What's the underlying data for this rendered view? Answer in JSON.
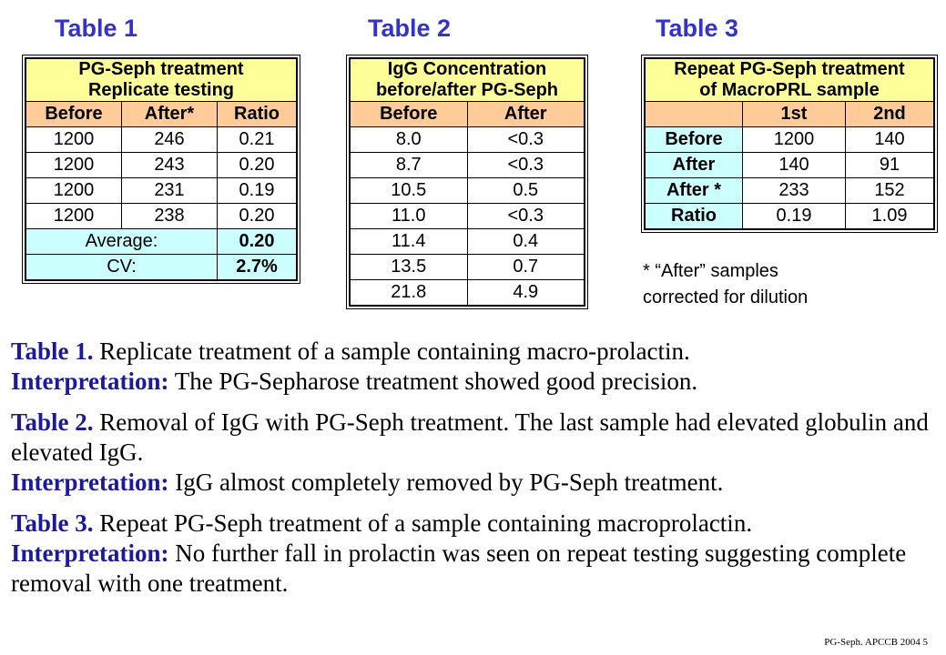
{
  "headings": {
    "t1": "Table 1",
    "t2": "Table 2",
    "t3": "Table 3"
  },
  "table1": {
    "title_line1": "PG-Seph treatment",
    "title_line2": "Replicate testing",
    "headers": [
      "Before",
      "After*",
      "Ratio"
    ],
    "rows": [
      [
        "1200",
        "246",
        "0.21"
      ],
      [
        "1200",
        "243",
        "0.20"
      ],
      [
        "1200",
        "231",
        "0.19"
      ],
      [
        "1200",
        "238",
        "0.20"
      ]
    ],
    "average_label": "Average:",
    "average_value": "0.20",
    "cv_label": "CV:",
    "cv_value": "2.7%"
  },
  "table2": {
    "title_line1": "IgG Concentration",
    "title_line2": "before/after PG-Seph",
    "headers": [
      "Before",
      "After"
    ],
    "rows": [
      [
        "8.0",
        "<0.3"
      ],
      [
        "8.7",
        "<0.3"
      ],
      [
        "10.5",
        "0.5"
      ],
      [
        "11.0",
        "<0.3"
      ],
      [
        "11.4",
        "0.4"
      ],
      [
        "13.5",
        "0.7"
      ],
      [
        "21.8",
        "4.9"
      ]
    ]
  },
  "table3": {
    "title_line1": "Repeat PG-Seph treatment",
    "title_line2": "of MacroPRL sample",
    "headers": [
      "",
      "1st",
      "2nd"
    ],
    "rows": [
      [
        "Before",
        "1200",
        "140"
      ],
      [
        "After",
        "140",
        "91"
      ],
      [
        "After *",
        "233",
        "152"
      ],
      [
        "Ratio",
        "0.19",
        "1.09"
      ]
    ],
    "footnote_line1": "* “After” samples",
    "footnote_line2": "corrected for dilution"
  },
  "captions": [
    {
      "label1": "Table 1.",
      "text1": " Replicate treatment of a sample containing macro-prolactin.",
      "label2": "Interpretation:",
      "text2": " The PG-Sepharose treatment showed good precision."
    },
    {
      "label1": "Table 2.",
      "text1": " Removal of IgG with PG-Seph treatment. The last sample had elevated globulin and elevated IgG.",
      "label2": "Interpretation:",
      "text2": " IgG almost completely removed by PG-Seph treatment."
    },
    {
      "label1": "Table 3.",
      "text1": " Repeat PG-Seph treatment of a sample containing macroprolactin.",
      "label2": "Interpretation:",
      "text2": " No further fall in prolactin was seen on repeat testing suggesting complete removal with one treatment."
    }
  ],
  "footer": "PG-Seph. APCCB 2004    5"
}
